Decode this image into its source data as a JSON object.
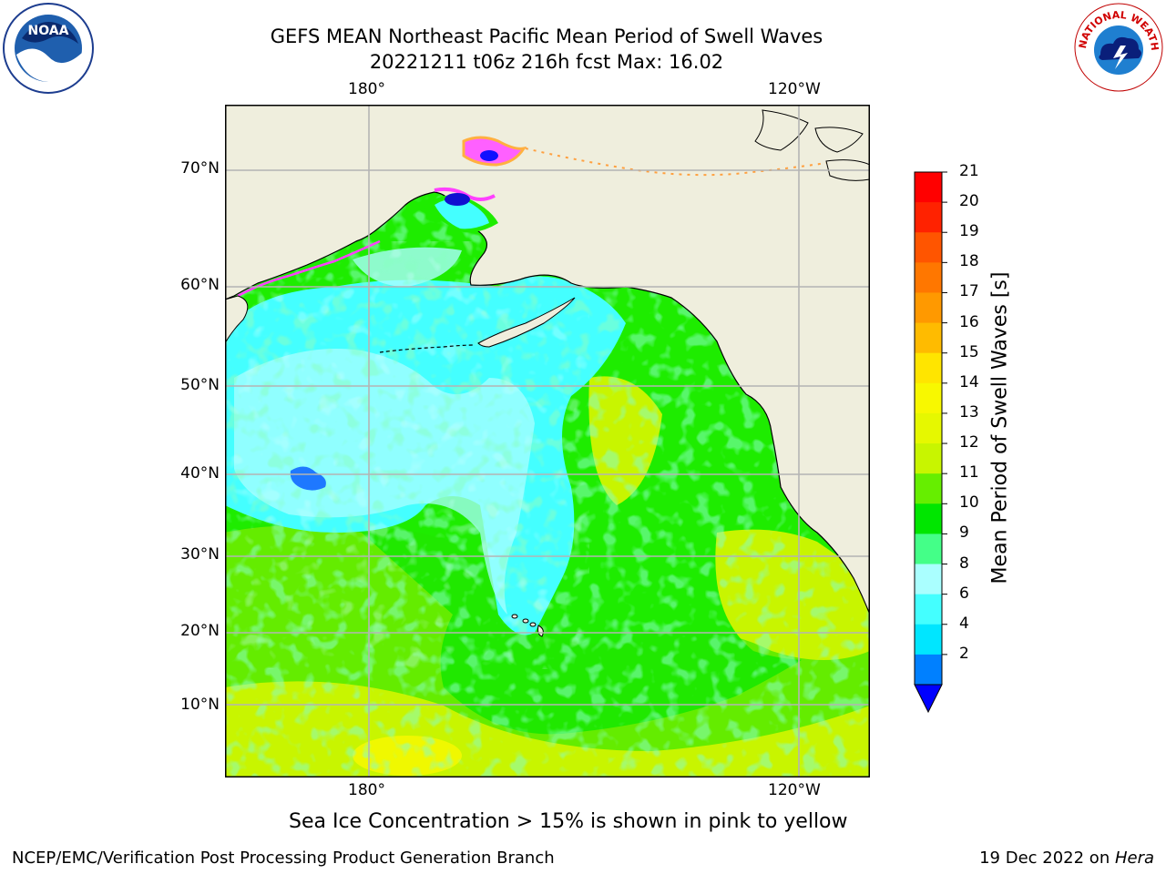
{
  "title": {
    "line1": "GEFS MEAN Northeast Pacific Mean Period of Swell Waves",
    "line2": "20221211 t06z 216h fcst   Max: 16.02"
  },
  "map": {
    "lon_labels": [
      "180°",
      "120°W"
    ],
    "lat_labels": [
      "70°N",
      "60°N",
      "50°N",
      "40°N",
      "30°N",
      "20°N",
      "10°N"
    ],
    "land_color": "#efeedd",
    "grid_color": "#b4b4b4"
  },
  "colorbar": {
    "title": "Mean Period of Swell Waves [s]",
    "ticks": [
      "21",
      "20",
      "19",
      "18",
      "17",
      "16",
      "15",
      "14",
      "13",
      "12",
      "11",
      "10",
      "9",
      "8",
      "6",
      "4",
      "2"
    ],
    "colors_top_to_bottom": [
      "#ff0000",
      "#ff2200",
      "#ff5500",
      "#ff7700",
      "#ff9900",
      "#ffbb00",
      "#ffe500",
      "#f8f800",
      "#e6f800",
      "#c8f500",
      "#66ee00",
      "#00e600",
      "#44ff88",
      "#aaffff",
      "#44ffff",
      "#00e6ff",
      "#0080ff"
    ],
    "under_color": "#0000ff"
  },
  "note": "Sea Ice Concentration > 15% is shown in pink to yellow",
  "footer": {
    "left": "NCEP/EMC/Verification Post Processing Product Generation Branch",
    "right_prefix": "19 Dec 2022 on ",
    "right_machine": "Hera"
  },
  "logos": {
    "left": "NOAA",
    "right": "NATIONAL WEATHER SERVICE"
  }
}
